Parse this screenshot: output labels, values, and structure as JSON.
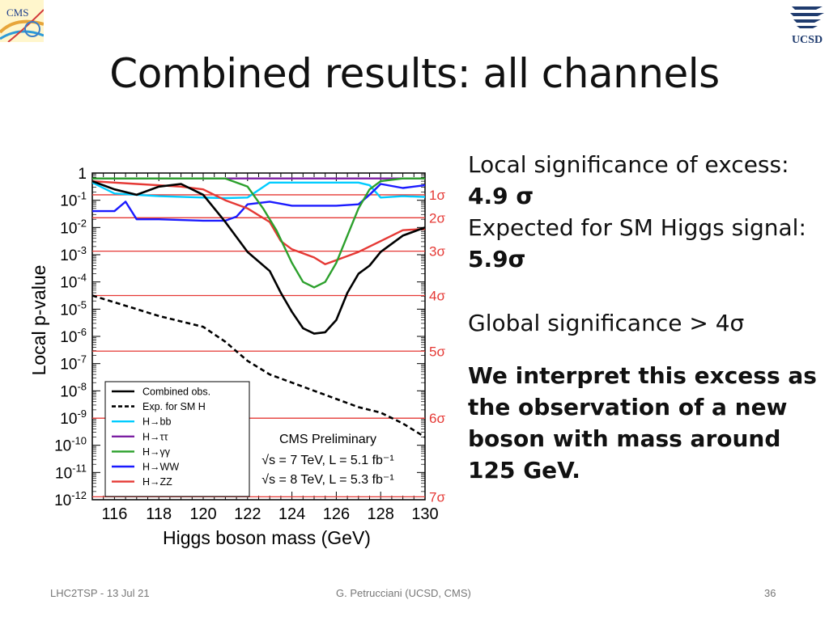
{
  "slide": {
    "title": "Combined results: all channels",
    "logo_left": "CMS",
    "logo_right": "UCSD"
  },
  "bullets": {
    "b1_text": "Local significance of excess: ",
    "b1_value": "4.9 σ",
    "b2_text": "Expected for SM Higgs signal: ",
    "b2_value": "5.9σ",
    "b3": "Global significance > 4σ",
    "b4": "We interpret this excess as the observation of a new boson with mass around 125 GeV."
  },
  "footer": {
    "left": "LHC2TSP - 13 Jul 21",
    "center": "G. Petrucciani (UCSD, CMS)",
    "page": "36"
  },
  "chart_data": {
    "type": "line",
    "xlabel": "Higgs boson mass (GeV)",
    "ylabel": "Local p-value",
    "xlim": [
      115,
      130
    ],
    "ylim_log10": [
      -12,
      0
    ],
    "log_y": true,
    "x_ticks": [
      116,
      118,
      120,
      122,
      124,
      126,
      128,
      130
    ],
    "y_ticks": [
      {
        "exp": 0,
        "label": "1"
      },
      {
        "exp": -1,
        "label": "10-1"
      },
      {
        "exp": -2,
        "label": "10-2"
      },
      {
        "exp": -3,
        "label": "10-3"
      },
      {
        "exp": -4,
        "label": "10-4"
      },
      {
        "exp": -5,
        "label": "10-5"
      },
      {
        "exp": -6,
        "label": "10-6"
      },
      {
        "exp": -7,
        "label": "10-7"
      },
      {
        "exp": -8,
        "label": "10-8"
      },
      {
        "exp": -9,
        "label": "10-9"
      },
      {
        "exp": -10,
        "label": "10-10"
      },
      {
        "exp": -11,
        "label": "10-11"
      },
      {
        "exp": -12,
        "label": "10-12"
      }
    ],
    "sigma_lines": [
      {
        "label": "1σ",
        "p": 0.1587
      },
      {
        "label": "2σ",
        "p": 0.02275
      },
      {
        "label": "3σ",
        "p": 0.00135
      },
      {
        "label": "4σ",
        "p": 3.17e-05
      },
      {
        "label": "5σ",
        "p": 2.87e-07
      },
      {
        "label": "6σ",
        "p": 9.87e-10
      },
      {
        "label": "7σ",
        "p": 1.28e-12
      }
    ],
    "annotation": {
      "title": "CMS Preliminary",
      "line1": "√s = 7 TeV, L = 5.1 fb⁻¹",
      "line2": "√s = 8 TeV, L = 5.3 fb⁻¹"
    },
    "legend_position": "bottom-left",
    "series": [
      {
        "name": "Combined  obs.",
        "color": "#000000",
        "dash": "solid",
        "width": 2.6,
        "points": [
          [
            115,
            -0.3
          ],
          [
            116,
            -0.6
          ],
          [
            117,
            -0.8
          ],
          [
            118,
            -0.5
          ],
          [
            119,
            -0.4
          ],
          [
            120,
            -0.8
          ],
          [
            121,
            -1.8
          ],
          [
            122,
            -2.9
          ],
          [
            123,
            -3.6
          ],
          [
            123.5,
            -4.4
          ],
          [
            124,
            -5.1
          ],
          [
            124.5,
            -5.7
          ],
          [
            125,
            -5.9
          ],
          [
            125.5,
            -5.85
          ],
          [
            126,
            -5.4
          ],
          [
            126.5,
            -4.4
          ],
          [
            127,
            -3.7
          ],
          [
            127.5,
            -3.4
          ],
          [
            128,
            -2.9
          ],
          [
            129,
            -2.3
          ],
          [
            130,
            -2.0
          ]
        ]
      },
      {
        "name": "Exp. for SM H",
        "color": "#000000",
        "dash": "dashed",
        "width": 2.6,
        "points": [
          [
            115,
            -4.5
          ],
          [
            116,
            -4.75
          ],
          [
            117,
            -5.0
          ],
          [
            118,
            -5.25
          ],
          [
            119,
            -5.45
          ],
          [
            120,
            -5.65
          ],
          [
            121,
            -6.2
          ],
          [
            122,
            -6.9
          ],
          [
            123,
            -7.4
          ],
          [
            124,
            -7.7
          ],
          [
            125,
            -8.0
          ],
          [
            126,
            -8.3
          ],
          [
            127,
            -8.6
          ],
          [
            128,
            -8.8
          ],
          [
            129,
            -9.2
          ],
          [
            130,
            -9.7
          ]
        ]
      },
      {
        "name": "H→bb",
        "color": "#00ccff",
        "dash": "solid",
        "width": 2.4,
        "points": [
          [
            115,
            -0.35
          ],
          [
            116,
            -0.75
          ],
          [
            118,
            -0.85
          ],
          [
            120,
            -0.9
          ],
          [
            121,
            -0.92
          ],
          [
            122,
            -0.9
          ],
          [
            123,
            -0.35
          ],
          [
            124,
            -0.35
          ],
          [
            126,
            -0.35
          ],
          [
            127,
            -0.35
          ],
          [
            127.5,
            -0.45
          ],
          [
            128,
            -0.9
          ],
          [
            129,
            -0.85
          ],
          [
            130,
            -0.88
          ]
        ]
      },
      {
        "name": "H→ττ",
        "color": "#7b1fa2",
        "dash": "solid",
        "width": 2.4,
        "points": [
          [
            115,
            -0.2
          ],
          [
            117,
            -0.2
          ],
          [
            119,
            -0.2
          ],
          [
            121,
            -0.2
          ],
          [
            123,
            -0.2
          ],
          [
            125,
            -0.2
          ],
          [
            127,
            -0.2
          ],
          [
            128,
            -0.2
          ],
          [
            130,
            -0.2
          ]
        ]
      },
      {
        "name": "H→γγ",
        "color": "#2ca02c",
        "dash": "solid",
        "width": 2.4,
        "points": [
          [
            115,
            -0.2
          ],
          [
            116,
            -0.2
          ],
          [
            118,
            -0.2
          ],
          [
            120,
            -0.2
          ],
          [
            121,
            -0.2
          ],
          [
            122,
            -0.5
          ],
          [
            122.7,
            -1.3
          ],
          [
            123.3,
            -2.1
          ],
          [
            124,
            -3.3
          ],
          [
            124.5,
            -4.0
          ],
          [
            125,
            -4.2
          ],
          [
            125.5,
            -4.0
          ],
          [
            126,
            -3.3
          ],
          [
            126.5,
            -2.3
          ],
          [
            127,
            -1.3
          ],
          [
            127.5,
            -0.6
          ],
          [
            128,
            -0.3
          ],
          [
            129,
            -0.2
          ],
          [
            130,
            -0.2
          ]
        ]
      },
      {
        "name": "H→WW",
        "color": "#1a1aff",
        "dash": "solid",
        "width": 2.4,
        "points": [
          [
            115,
            -1.4
          ],
          [
            116,
            -1.4
          ],
          [
            116.5,
            -1.05
          ],
          [
            117,
            -1.7
          ],
          [
            118,
            -1.7
          ],
          [
            120,
            -1.75
          ],
          [
            121,
            -1.75
          ],
          [
            121.5,
            -1.6
          ],
          [
            122,
            -1.15
          ],
          [
            123,
            -1.05
          ],
          [
            124,
            -1.2
          ],
          [
            126,
            -1.2
          ],
          [
            127,
            -1.15
          ],
          [
            127.5,
            -0.8
          ],
          [
            128,
            -0.4
          ],
          [
            129,
            -0.55
          ],
          [
            130,
            -0.45
          ]
        ]
      },
      {
        "name": "H→ZZ",
        "color": "#e53935",
        "dash": "solid",
        "width": 2.4,
        "points": [
          [
            115,
            -0.3
          ],
          [
            117,
            -0.4
          ],
          [
            119,
            -0.5
          ],
          [
            120,
            -0.6
          ],
          [
            121,
            -1.0
          ],
          [
            122,
            -1.3
          ],
          [
            123,
            -1.8
          ],
          [
            123.5,
            -2.5
          ],
          [
            124,
            -2.8
          ],
          [
            125,
            -3.1
          ],
          [
            125.5,
            -3.35
          ],
          [
            126,
            -3.2
          ],
          [
            127,
            -2.9
          ],
          [
            128,
            -2.5
          ],
          [
            129,
            -2.1
          ],
          [
            130,
            -2.05
          ]
        ]
      }
    ]
  }
}
